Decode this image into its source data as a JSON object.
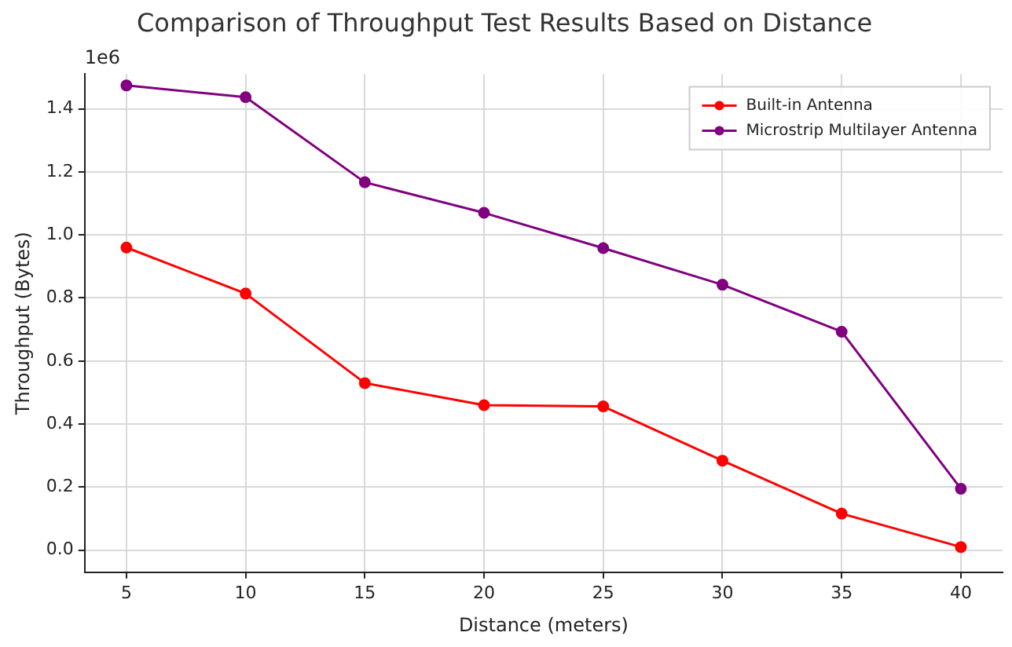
{
  "chart_data": {
    "type": "line",
    "title": "Comparison of Throughput Test Results Based on Distance",
    "xlabel": "Distance (meters)",
    "ylabel": "Throughput (Bytes)",
    "annotations": [
      "1e6"
    ],
    "x": [
      5,
      10,
      15,
      20,
      25,
      30,
      35,
      40
    ],
    "series": [
      {
        "name": "Built-in Antenna",
        "color": "#ff0000",
        "values": [
          0.96,
          0.814,
          0.53,
          0.46,
          0.456,
          0.284,
          0.116,
          0.01
        ]
      },
      {
        "name": "Microstrip Multilayer Antenna",
        "color": "#800080",
        "values": [
          1.474,
          1.437,
          1.167,
          1.07,
          0.958,
          0.842,
          0.693,
          0.195
        ]
      }
    ],
    "xlim": [
      3.25,
      41.75
    ],
    "xticks": [
      5,
      10,
      15,
      20,
      25,
      30,
      35,
      40
    ],
    "ylim": [
      -0.07,
      1.51
    ],
    "yticks": [
      {
        "value": 0,
        "label": "0.0"
      },
      0.2,
      0.4,
      0.6,
      0.8,
      {
        "value": 1,
        "label": "1.0"
      },
      1.2,
      1.4
    ],
    "grid": true,
    "legend": "top right",
    "marker": "circle",
    "line_style": "solid"
  }
}
